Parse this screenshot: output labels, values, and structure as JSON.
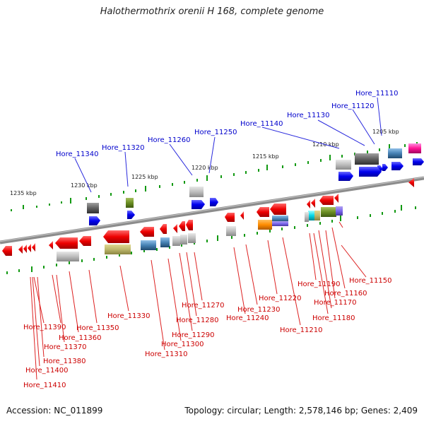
{
  "title": "Halothermothrix orenii H 168, complete genome",
  "footer": {
    "accession": "Accession: NC_011899",
    "summary": "Topology: circular; Length: 2,578,146 bp; Genes: 2,409"
  },
  "scale_ticks": [
    "1205 kbp",
    "1210 kbp",
    "1215 kbp",
    "1220 kbp",
    "1225 kbp",
    "1230 kbp",
    "1235 kbp"
  ],
  "top_genes": [
    "Hore_11110",
    "Hore_11120",
    "Hore_11130",
    "Hore_11140",
    "Hore_11250",
    "Hore_11260",
    "Hore_11320",
    "Hore_11340"
  ],
  "bottom_genes": [
    "Hore_11150",
    "Hore_11160",
    "Hore_11170",
    "Hore_11180",
    "Hore_11190",
    "Hore_11210",
    "Hore_11220",
    "Hore_11230",
    "Hore_11240",
    "Hore_11270",
    "Hore_11280",
    "Hore_11290",
    "Hore_11300",
    "Hore_11310",
    "Hore_11330",
    "Hore_11350",
    "Hore_11360",
    "Hore_11370",
    "Hore_11380",
    "Hore_11390",
    "Hore_11400",
    "Hore_11410"
  ],
  "colors": {
    "top_label": "#0000cc",
    "bottom_label": "#cc0000",
    "tick": "#119911",
    "backbone": "#888888"
  }
}
